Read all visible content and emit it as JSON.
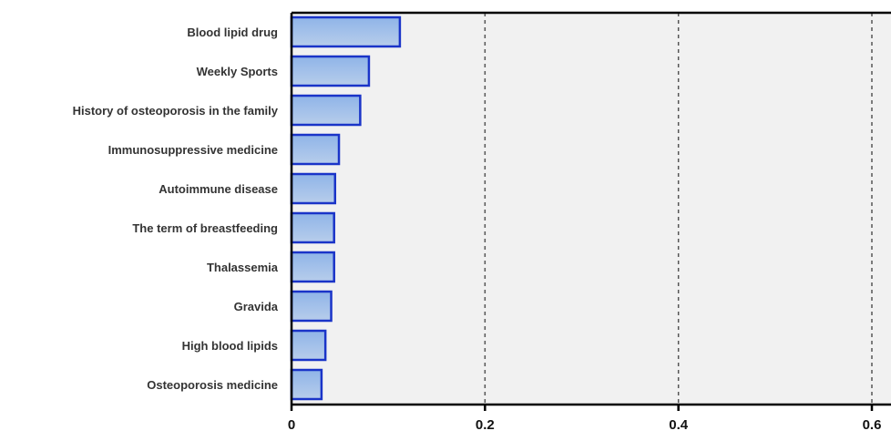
{
  "chart_data": {
    "type": "bar",
    "orientation": "horizontal",
    "categories": [
      "Blood lipid drug",
      "Weekly Sports",
      "History of osteoporosis in the family",
      "Immunosuppressive medicine",
      "Autoimmune disease",
      "The term of breastfeeding",
      "Thalassemia",
      "Gravida",
      "High blood lipids",
      "Osteoporosis medicine"
    ],
    "values": [
      0.112,
      0.08,
      0.071,
      0.049,
      0.045,
      0.044,
      0.044,
      0.041,
      0.035,
      0.031
    ],
    "xlim": [
      0,
      0.6
    ],
    "xticks": [
      "0",
      "0.2",
      "0.4",
      "0.6"
    ],
    "title": "",
    "xlabel": "",
    "ylabel": "",
    "grid": "vertical dashed lines at x ticks",
    "legend": "none",
    "colors": {
      "plot_background": "#f1f1f1",
      "bar_fill_top": "#8fb4e8",
      "bar_fill_bottom": "#b7cdeb",
      "bar_stroke": "#1a34c8",
      "axis": "#000000",
      "grid": "#555555"
    }
  }
}
